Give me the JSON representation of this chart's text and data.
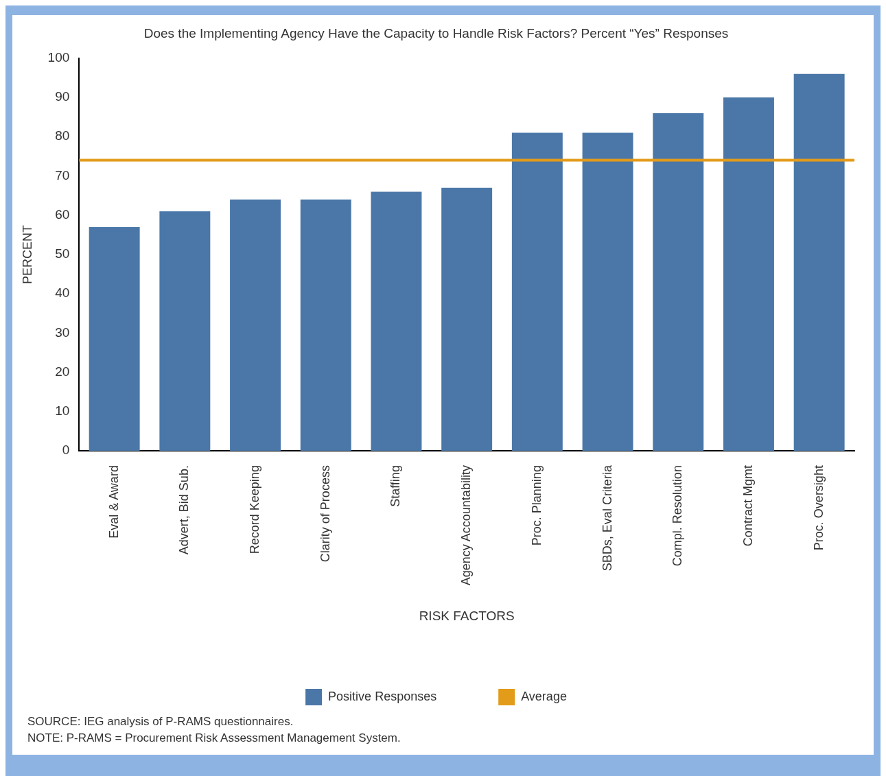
{
  "chart_data": {
    "type": "bar",
    "title": "Does the Implementing Agency Have the Capacity to Handle Risk Factors? Percent “Yes” Responses",
    "xlabel": "RISK FACTORS",
    "ylabel": "PERCENT",
    "categories": [
      "Eval & Award",
      "Advert, Bid Sub.",
      "Record Keeping",
      "Clarity of Process",
      "Staffing",
      "Agency Accountability",
      "Proc. Planning",
      "SBDs, Eval Criteria",
      "Compl. Resolution",
      "Contract Mgmt",
      "Proc. Oversight"
    ],
    "series": [
      {
        "name": "Positive Responses",
        "color": "#4a77a8",
        "values": [
          57,
          61,
          64,
          64,
          66,
          67,
          81,
          81,
          86,
          90,
          96
        ]
      }
    ],
    "ylim": [
      0,
      100
    ],
    "yticks": [
      0,
      10,
      20,
      30,
      40,
      50,
      60,
      70,
      80,
      90,
      100
    ],
    "grid": false,
    "legend": "bottom",
    "ref_lines": [
      {
        "axis": "y",
        "value": 74,
        "label": "Average",
        "color": "#e39b1a"
      }
    ],
    "annotations": [
      "SOURCE: IEG analysis of P-RAMS questionnaires.",
      "NOTE: P-RAMS = Procurement Risk Assessment Management System."
    ]
  }
}
